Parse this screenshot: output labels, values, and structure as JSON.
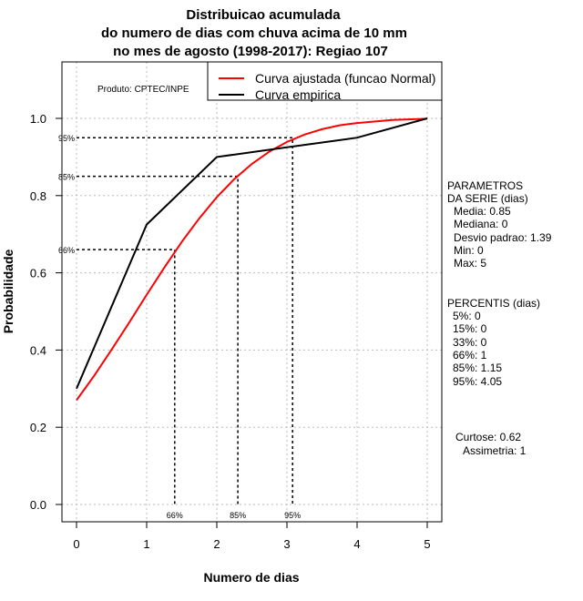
{
  "chart_data": {
    "type": "line",
    "title": [
      "Distribuicao acumulada",
      "do numero de dias com chuva acima de 10 mm",
      "no mes de agosto (1998-2017): Regiao 107"
    ],
    "xlabel": "Numero de dias",
    "ylabel": "Probabilidade",
    "xlim": [
      -0.2,
      5.2
    ],
    "ylim": [
      -0.04,
      1.14
    ],
    "x_ticks": [
      0,
      1,
      2,
      3,
      4,
      5
    ],
    "x_tick_labels": [
      "0",
      "1",
      "2",
      "3",
      "4",
      "5"
    ],
    "y_ticks": [
      0.0,
      0.2,
      0.4,
      0.6,
      0.8,
      1.0
    ],
    "y_tick_labels": [
      "0.0",
      "0.2",
      "0.4",
      "0.6",
      "0.8",
      "1.0"
    ],
    "grid": true,
    "legend_placement": "top-right",
    "credit": "Produto: CPTEC/INPE",
    "series": [
      {
        "name": "Curva ajustada (funcao Normal)",
        "color": "#ff0000",
        "x": [
          0,
          0.25,
          0.5,
          0.75,
          1,
          1.25,
          1.5,
          1.75,
          2,
          2.25,
          2.5,
          2.75,
          3,
          3.25,
          3.5,
          3.75,
          4,
          4.5,
          5
        ],
        "y": [
          0.27,
          0.333,
          0.401,
          0.471,
          0.543,
          0.613,
          0.68,
          0.741,
          0.796,
          0.843,
          0.882,
          0.914,
          0.939,
          0.958,
          0.972,
          0.982,
          0.988,
          0.996,
          0.999
        ]
      },
      {
        "name": "Curva empirica",
        "color": "#000000",
        "x": [
          0,
          1,
          2,
          3,
          4,
          5
        ],
        "y": [
          0.3,
          0.725,
          0.9,
          0.925,
          0.95,
          1.0
        ]
      }
    ],
    "percentile_markers": [
      {
        "label": "66%",
        "prob": 0.66,
        "x": 1.4
      },
      {
        "label": "85%",
        "prob": 0.85,
        "x": 2.3
      },
      {
        "label": "95%",
        "prob": 0.95,
        "x": 3.08
      }
    ]
  },
  "side_panel": {
    "params_title": [
      "PARAMETROS",
      "DA SERIE (dias)"
    ],
    "params": [
      "Media: 0.85",
      "Mediana: 0",
      "Desvio padrao: 1.39",
      "Min: 0",
      "Max: 5"
    ],
    "percentis_title": "PERCENTIS (dias)",
    "percentis": [
      "5%: 0",
      "15%: 0",
      "33%: 0",
      "66%: 1",
      "85%: 1.15",
      "95%: 4.05"
    ],
    "curtose": "Curtose: 0.62",
    "assimetria": "Assimetria: 1"
  }
}
